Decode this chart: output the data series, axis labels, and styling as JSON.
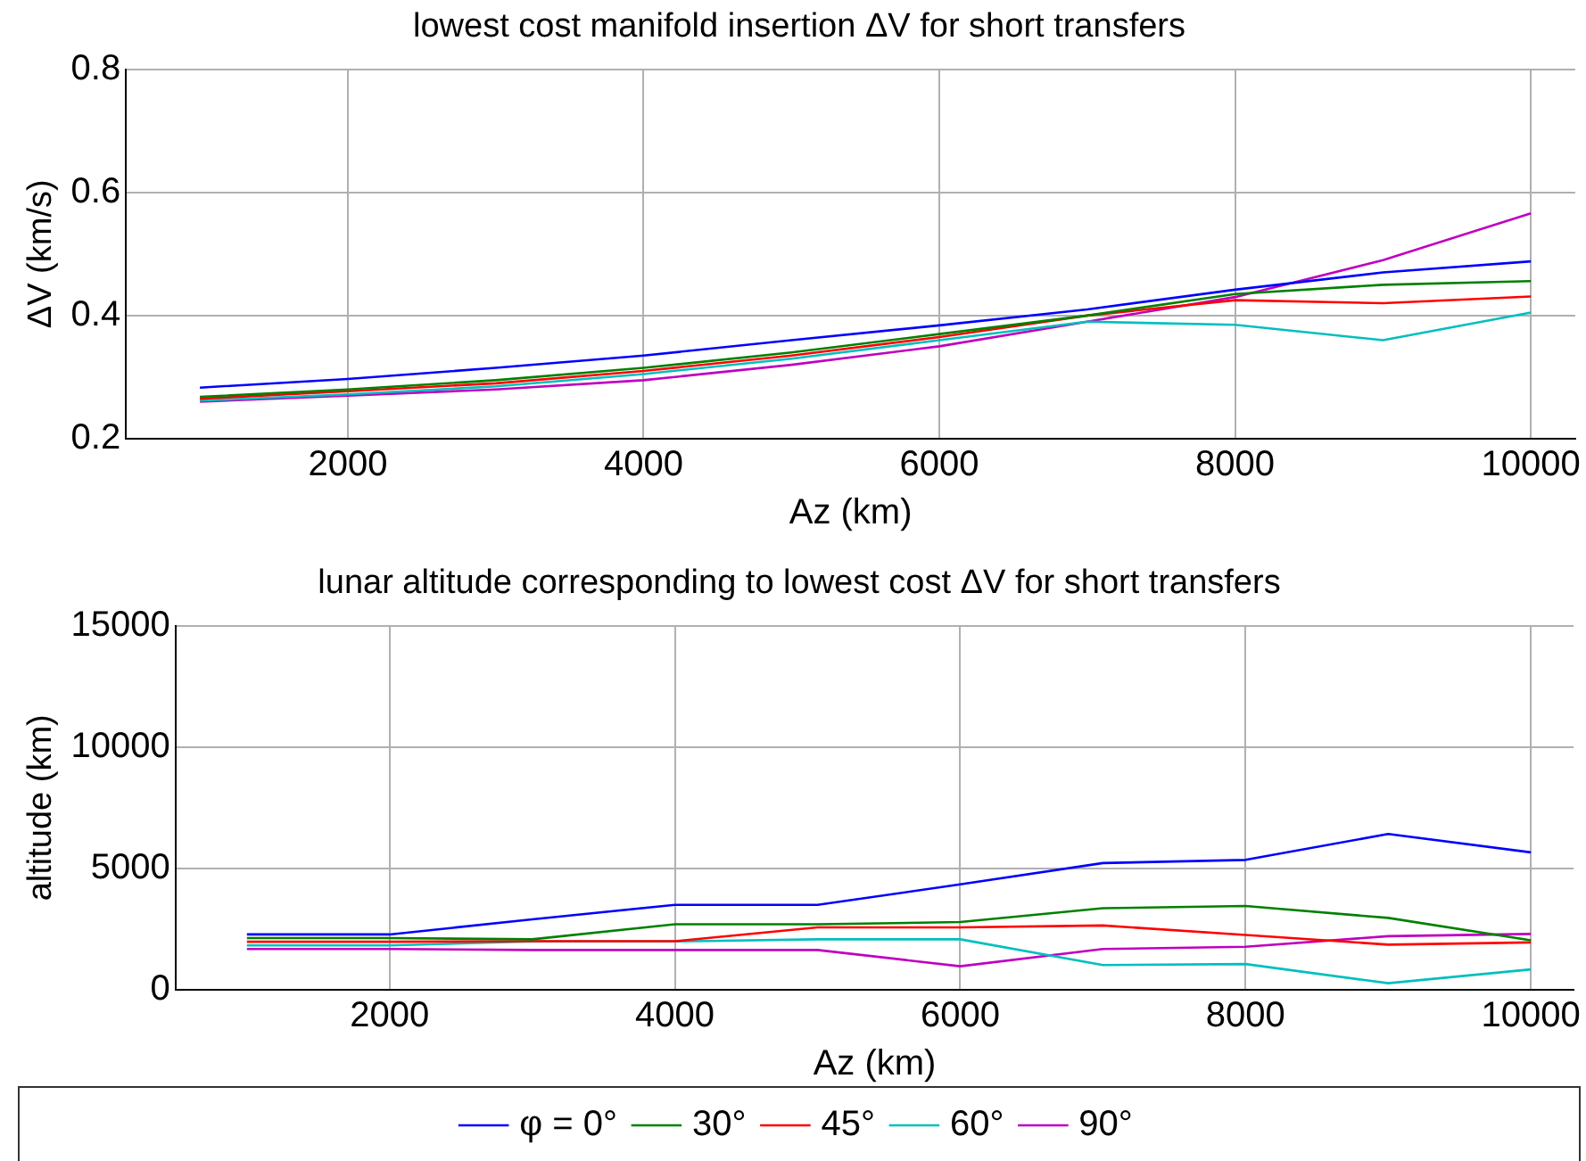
{
  "chart_data": [
    {
      "type": "line",
      "title": "lowest cost manifold insertion ΔV for short transfers",
      "xlabel": "Az (km)",
      "ylabel": "ΔV (km/s)",
      "x": [
        1000,
        2000,
        3000,
        4000,
        5000,
        6000,
        7000,
        8000,
        9000,
        10000
      ],
      "series": [
        {
          "color": "#0000ff",
          "values": [
            0.283,
            0.297,
            0.315,
            0.335,
            0.36,
            0.384,
            0.41,
            0.442,
            0.47,
            0.488
          ]
        },
        {
          "color": "#008000",
          "values": [
            0.268,
            0.28,
            0.295,
            0.315,
            0.34,
            0.37,
            0.4,
            0.435,
            0.45,
            0.456
          ]
        },
        {
          "color": "#ff0000",
          "values": [
            0.265,
            0.277,
            0.29,
            0.31,
            0.335,
            0.365,
            0.4,
            0.425,
            0.42,
            0.431
          ]
        },
        {
          "color": "#00bfbf",
          "values": [
            0.262,
            0.272,
            0.285,
            0.305,
            0.33,
            0.36,
            0.39,
            0.385,
            0.36,
            0.405
          ]
        },
        {
          "color": "#bf00bf",
          "values": [
            0.26,
            0.27,
            0.28,
            0.295,
            0.32,
            0.35,
            0.39,
            0.43,
            0.49,
            0.566
          ]
        }
      ],
      "xlim": [
        500,
        10300
      ],
      "xticks": [
        2000,
        4000,
        6000,
        8000,
        10000
      ],
      "ylim": [
        0.2,
        0.8
      ],
      "yticks": [
        0.2,
        0.4,
        0.6,
        0.8
      ],
      "grid": true,
      "marker": "none",
      "line_style": "solid"
    },
    {
      "type": "line",
      "title": "lunar altitude corresponding to lowest cost ΔV for short transfers",
      "xlabel": "Az (km)",
      "ylabel": "altitude (km)",
      "x": [
        1000,
        2000,
        3000,
        4000,
        5000,
        6000,
        7000,
        8000,
        9000,
        10000
      ],
      "series": [
        {
          "name": "φ = 0°",
          "color": "#0000ff",
          "values": [
            2280,
            2280,
            2900,
            3500,
            3500,
            4340,
            5220,
            5350,
            6420,
            5660
          ]
        },
        {
          "name": "30°",
          "color": "#008000",
          "values": [
            2130,
            2130,
            2080,
            2700,
            2700,
            2790,
            3360,
            3450,
            2960,
            2040
          ]
        },
        {
          "name": "45°",
          "color": "#ff0000",
          "values": [
            1980,
            1980,
            2000,
            2000,
            2570,
            2570,
            2650,
            2260,
            1860,
            1950
          ]
        },
        {
          "name": "60°",
          "color": "#00bfbf",
          "values": [
            1830,
            1830,
            1990,
            1990,
            2080,
            2080,
            1020,
            1060,
            270,
            840
          ]
        },
        {
          "name": "90°",
          "color": "#bf00bf",
          "values": [
            1680,
            1680,
            1640,
            1640,
            1640,
            970,
            1680,
            1770,
            2210,
            2300
          ]
        }
      ],
      "xlim": [
        500,
        10300
      ],
      "xticks": [
        2000,
        4000,
        6000,
        8000,
        10000
      ],
      "ylim": [
        0,
        15000
      ],
      "yticks": [
        0,
        5000,
        10000,
        15000
      ],
      "grid": true,
      "legend": "bottom",
      "marker": "none",
      "line_style": "solid"
    }
  ]
}
